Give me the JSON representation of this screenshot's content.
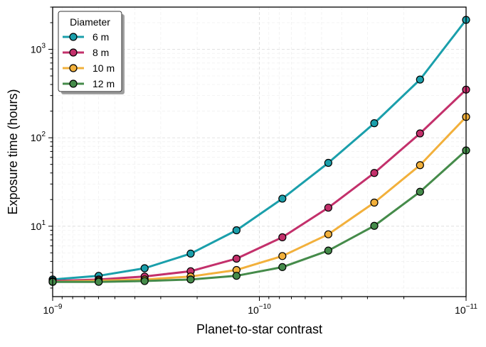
{
  "chart_data": {
    "type": "line",
    "title": "",
    "xlabel": "Planet-to-star contrast",
    "ylabel": "Exposure time (hours)",
    "xscale": "log",
    "yscale": "log",
    "x_reversed": true,
    "xlim": [
      1e-09,
      1e-11
    ],
    "ylim": [
      1.6,
      3000
    ],
    "grid": true,
    "x_tick_labels": [
      {
        "value": 1e-09,
        "base": "10",
        "exp": "−9"
      },
      {
        "value": 1e-10,
        "base": "10",
        "exp": "−10"
      },
      {
        "value": 1e-11,
        "base": "10",
        "exp": "−11"
      }
    ],
    "y_tick_labels": [
      {
        "value": 10,
        "base": "10",
        "exp": "1"
      },
      {
        "value": 100,
        "base": "10",
        "exp": "2"
      },
      {
        "value": 1000,
        "base": "10",
        "exp": "3"
      }
    ],
    "x": [
      1e-09,
      5.99e-10,
      3.59e-10,
      2.15e-10,
      1.29e-10,
      7.74e-11,
      4.64e-11,
      2.78e-11,
      1.67e-11,
      1e-11
    ],
    "legend": {
      "title": "Diameter",
      "position": "top-left"
    },
    "series": [
      {
        "name": "6 m",
        "color": "#1a9fab",
        "values": [
          2.5,
          2.75,
          3.35,
          4.9,
          9.0,
          20.5,
          52,
          146,
          455,
          2150
        ]
      },
      {
        "name": "8 m",
        "color": "#c3306b",
        "values": [
          2.4,
          2.5,
          2.7,
          3.1,
          4.3,
          7.5,
          16.2,
          40,
          112,
          350
        ]
      },
      {
        "name": "10 m",
        "color": "#f2b03b",
        "values": [
          2.35,
          2.42,
          2.5,
          2.7,
          3.2,
          4.6,
          8.1,
          18.5,
          49,
          172
        ]
      },
      {
        "name": "12 m",
        "color": "#458b4a",
        "values": [
          2.35,
          2.35,
          2.4,
          2.5,
          2.75,
          3.45,
          5.3,
          10.1,
          24.5,
          72
        ]
      }
    ]
  }
}
